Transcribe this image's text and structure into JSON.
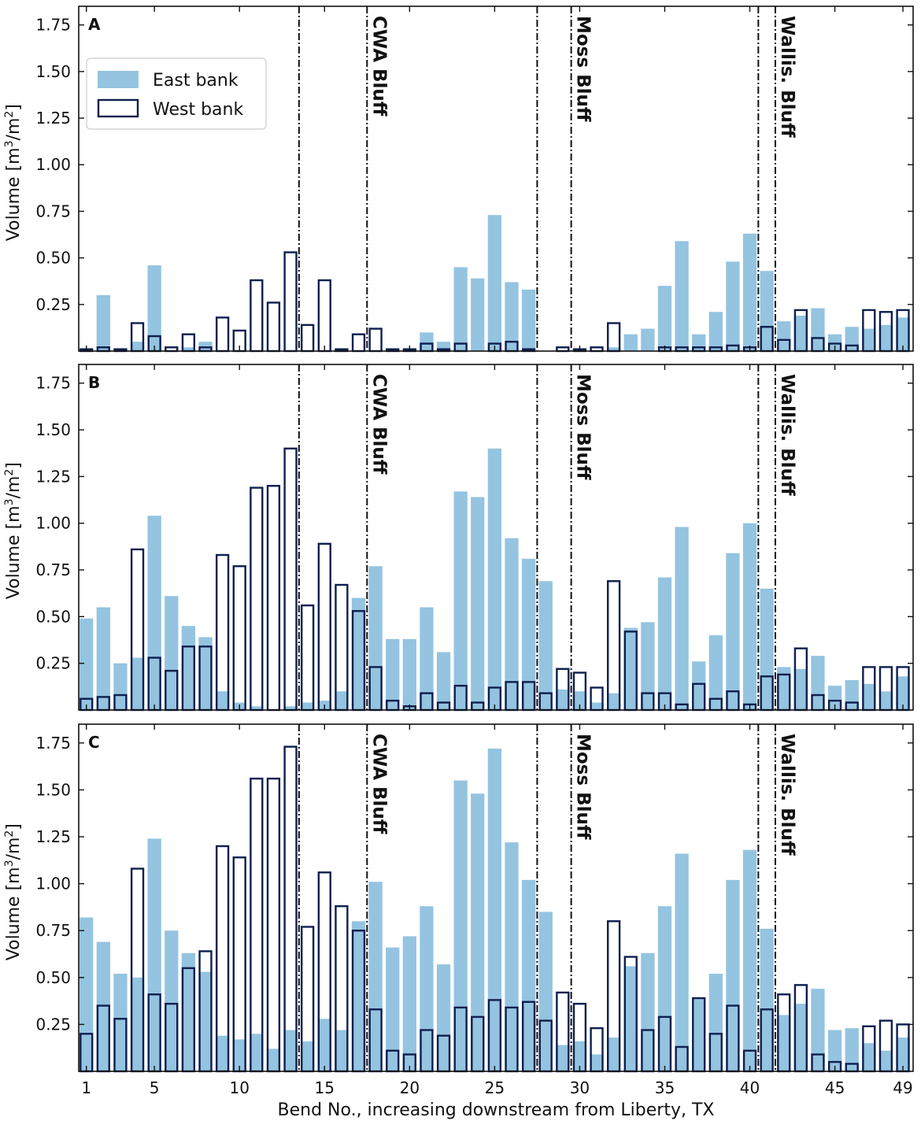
{
  "chart_data": {
    "type": "bar",
    "panels": [
      {
        "panel_label": "A",
        "ylim": [
          0,
          1.85
        ],
        "east": [
          0.0,
          0.3,
          0.0,
          0.05,
          0.46,
          0.0,
          0.02,
          0.05,
          0.0,
          0.0,
          0.0,
          0.0,
          0.0,
          0.0,
          0.0,
          0.0,
          0.0,
          0.0,
          0.0,
          0.0,
          0.1,
          0.05,
          0.45,
          0.39,
          0.73,
          0.37,
          0.33,
          0.0,
          0.0,
          0.0,
          0.0,
          0.02,
          0.09,
          0.12,
          0.35,
          0.59,
          0.09,
          0.21,
          0.48,
          0.63,
          0.43,
          0.16,
          0.19,
          0.23,
          0.09,
          0.13,
          0.12,
          0.14,
          0.18
        ],
        "west": [
          0.01,
          0.02,
          0.01,
          0.15,
          0.08,
          0.02,
          0.09,
          0.02,
          0.18,
          0.11,
          0.38,
          0.26,
          0.53,
          0.14,
          0.38,
          0.01,
          0.09,
          0.12,
          0.01,
          0.01,
          0.04,
          0.01,
          0.04,
          0.0,
          0.04,
          0.05,
          0.01,
          0.0,
          0.02,
          0.01,
          0.02,
          0.15,
          0.0,
          0.0,
          0.02,
          0.02,
          0.02,
          0.02,
          0.03,
          0.02,
          0.13,
          0.06,
          0.22,
          0.07,
          0.04,
          0.03,
          0.22,
          0.21,
          0.22
        ]
      },
      {
        "panel_label": "B",
        "ylim": [
          0,
          1.85
        ],
        "east": [
          0.49,
          0.55,
          0.25,
          0.28,
          1.04,
          0.61,
          0.45,
          0.39,
          0.1,
          0.04,
          0.02,
          0.0,
          0.02,
          0.04,
          0.05,
          0.1,
          0.6,
          0.77,
          0.38,
          0.38,
          0.55,
          0.31,
          1.17,
          1.14,
          1.4,
          0.92,
          0.81,
          0.69,
          0.11,
          0.1,
          0.04,
          0.09,
          0.44,
          0.47,
          0.71,
          0.98,
          0.26,
          0.4,
          0.84,
          1.0,
          0.65,
          0.23,
          0.22,
          0.29,
          0.13,
          0.16,
          0.14,
          0.1,
          0.18
        ],
        "west": [
          0.06,
          0.07,
          0.08,
          0.86,
          0.28,
          0.21,
          0.34,
          0.34,
          0.83,
          0.77,
          1.19,
          1.2,
          1.4,
          0.56,
          0.89,
          0.67,
          0.53,
          0.23,
          0.05,
          0.02,
          0.09,
          0.04,
          0.13,
          0.04,
          0.12,
          0.15,
          0.15,
          0.09,
          0.22,
          0.2,
          0.12,
          0.69,
          0.42,
          0.09,
          0.09,
          0.03,
          0.14,
          0.06,
          0.1,
          0.03,
          0.18,
          0.19,
          0.33,
          0.08,
          0.05,
          0.04,
          0.23,
          0.23,
          0.23
        ]
      },
      {
        "panel_label": "C",
        "ylim": [
          0,
          1.85
        ],
        "east": [
          0.82,
          0.69,
          0.52,
          0.5,
          1.24,
          0.75,
          0.63,
          0.53,
          0.19,
          0.17,
          0.2,
          0.12,
          0.22,
          0.16,
          0.28,
          0.22,
          0.8,
          1.01,
          0.66,
          0.72,
          0.88,
          0.57,
          1.55,
          1.48,
          1.72,
          1.22,
          1.02,
          0.85,
          0.14,
          0.16,
          0.09,
          0.18,
          0.56,
          0.63,
          0.88,
          1.16,
          0.39,
          0.52,
          1.02,
          1.18,
          0.76,
          0.3,
          0.36,
          0.44,
          0.22,
          0.23,
          0.15,
          0.11,
          0.18
        ],
        "west": [
          0.2,
          0.35,
          0.28,
          1.08,
          0.41,
          0.36,
          0.55,
          0.64,
          1.2,
          1.14,
          1.56,
          1.56,
          1.73,
          0.77,
          1.06,
          0.88,
          0.75,
          0.33,
          0.11,
          0.09,
          0.22,
          0.19,
          0.34,
          0.29,
          0.38,
          0.34,
          0.37,
          0.27,
          0.42,
          0.36,
          0.23,
          0.8,
          0.61,
          0.22,
          0.29,
          0.13,
          0.39,
          0.2,
          0.35,
          0.11,
          0.33,
          0.41,
          0.46,
          0.09,
          0.05,
          0.04,
          0.24,
          0.27,
          0.25
        ]
      }
    ],
    "x_ticks": [
      1,
      5,
      10,
      15,
      20,
      25,
      30,
      35,
      40,
      45,
      49
    ],
    "y_ticks": [
      "0.25",
      "0.50",
      "0.75",
      "1.00",
      "1.25",
      "1.50",
      "1.75"
    ],
    "y_tick_values": [
      0.25,
      0.5,
      0.75,
      1.0,
      1.25,
      1.5,
      1.75
    ],
    "vlines": [
      13.5,
      17.5,
      27.5,
      29.5,
      40.5,
      41.5
    ],
    "annotations": [
      {
        "x": 17.5,
        "text": "CWA Bluff"
      },
      {
        "x": 29.5,
        "text": "Moss Bluff"
      },
      {
        "x": 41.5,
        "text": "Wallis. Bluff"
      }
    ],
    "legend": {
      "east": "East bank",
      "west": "West bank",
      "position": "upper-left"
    },
    "xlabel": "Bend No., increasing downstream from Liberty, TX",
    "ylabel": "Volume [m³/m²]",
    "ylabel_unit_base": "Volume [m",
    "ylabel_sup1": "3",
    "ylabel_mid": "/m",
    "ylabel_sup2": "2",
    "ylabel_end": "]",
    "colors": {
      "east": "#94c4e0",
      "west_edge": "#0e1f4f",
      "axis": "#111111"
    },
    "n_bends": 49
  }
}
